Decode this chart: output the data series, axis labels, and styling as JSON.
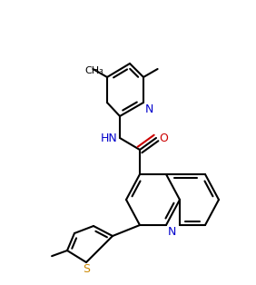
{
  "background_color": "#ffffff",
  "line_color": "#000000",
  "bond_lw": 1.5,
  "atom_colors": {
    "N": "#0000cc",
    "O": "#cc0000",
    "S": "#cc8800",
    "C": "#000000"
  },
  "font_size": 9,
  "methyl_font_size": 8
}
